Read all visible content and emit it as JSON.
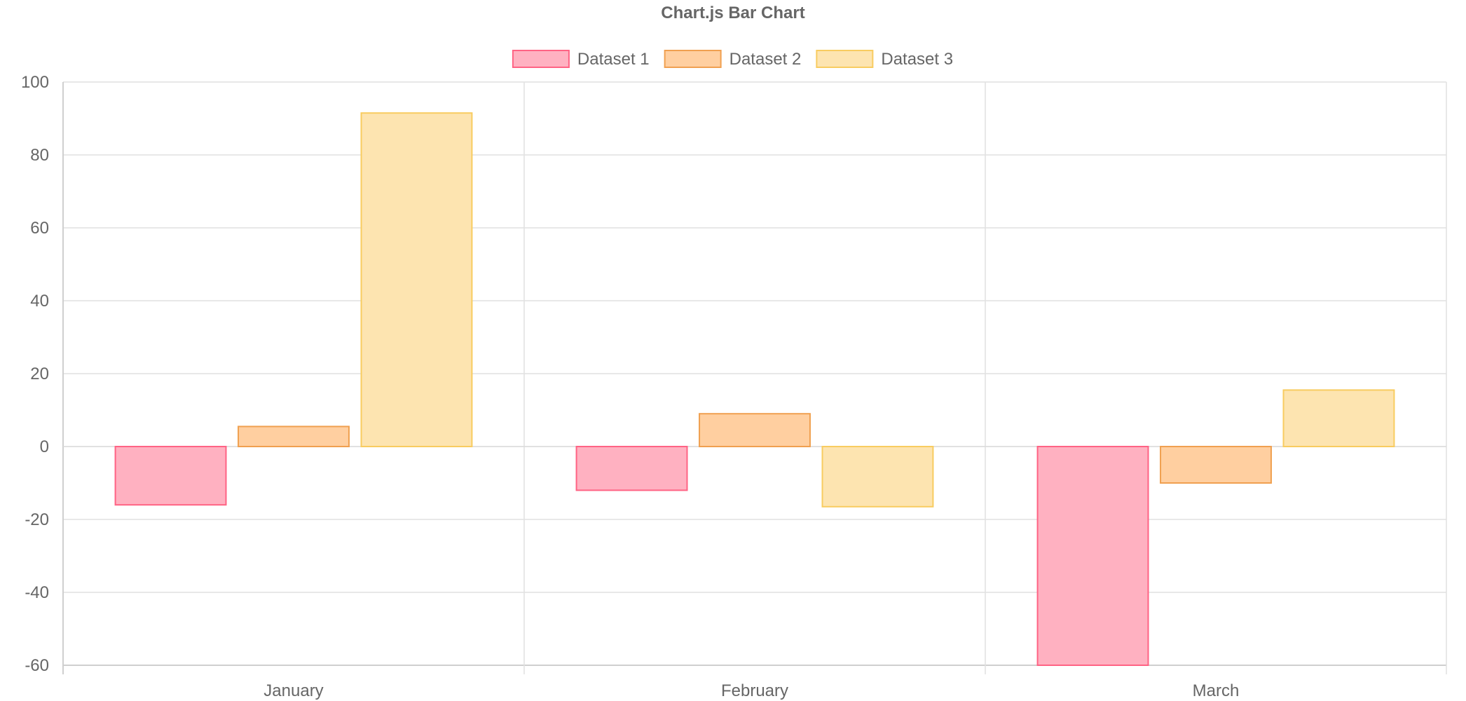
{
  "chart_data": {
    "type": "bar",
    "title": "Chart.js Bar Chart",
    "categories": [
      "January",
      "February",
      "March"
    ],
    "series": [
      {
        "name": "Dataset 1",
        "values": [
          -16,
          -12,
          -60
        ],
        "fill": "#ffb1c1",
        "stroke": "#ff6384"
      },
      {
        "name": "Dataset 2",
        "values": [
          5.5,
          9,
          -10
        ],
        "fill": "#ffcfa0",
        "stroke": "#f0a050"
      },
      {
        "name": "Dataset 3",
        "values": [
          91.5,
          -16.5,
          15.5
        ],
        "fill": "#fde4b0",
        "stroke": "#f8cc60"
      }
    ],
    "ylim": [
      -60,
      100
    ],
    "yticks": [
      100,
      80,
      60,
      40,
      20,
      0,
      -20,
      -40,
      -60
    ],
    "grid": true,
    "legend_position": "top"
  }
}
